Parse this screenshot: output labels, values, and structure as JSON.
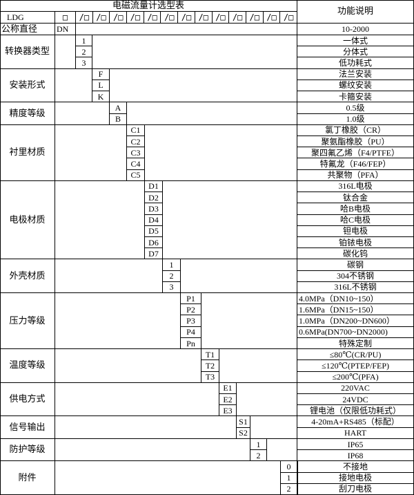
{
  "title": "电磁流量计选型表",
  "function_header": "功能说明",
  "header_row": {
    "model": "LDG",
    "first_box": "□",
    "boxes": [
      "/□",
      "/□",
      "/□",
      "/□",
      "/□",
      "/□",
      "/□",
      "/□",
      "/□",
      "/□",
      "/□",
      "/□",
      "/□"
    ]
  },
  "diameter_row": {
    "label": "公称直径",
    "code": "DN",
    "desc": "10-2000"
  },
  "groups": [
    {
      "label": "转换器类型",
      "options": [
        {
          "code": "1",
          "desc": "一体式"
        },
        {
          "code": "2",
          "desc": "分体式"
        },
        {
          "code": "3",
          "desc": "低功耗式"
        }
      ]
    },
    {
      "label": "安装形式",
      "options": [
        {
          "code": "F",
          "desc": "法兰安装"
        },
        {
          "code": "L",
          "desc": "螺纹安装"
        },
        {
          "code": "K",
          "desc": "卡箍安装"
        }
      ]
    },
    {
      "label": "精度等级",
      "options": [
        {
          "code": "A",
          "desc": "0.5级"
        },
        {
          "code": "B",
          "desc": "1.0级"
        }
      ]
    },
    {
      "label": "衬里材质",
      "options": [
        {
          "code": "C1",
          "desc": "氯丁橡胶（CR）"
        },
        {
          "code": "C2",
          "desc": "聚氨酯橡胶（PU）"
        },
        {
          "code": "C3",
          "desc": "聚四氟乙烯（F4/PTFE）"
        },
        {
          "code": "C4",
          "desc": "特氟龙（F46/FEP）"
        },
        {
          "code": "C5",
          "desc": "共聚物（PFA）"
        }
      ]
    },
    {
      "label": "电极材质",
      "options": [
        {
          "code": "D1",
          "desc": "316L电极"
        },
        {
          "code": "D2",
          "desc": "钛合金"
        },
        {
          "code": "D3",
          "desc": "哈B电极"
        },
        {
          "code": "D4",
          "desc": "哈C电极"
        },
        {
          "code": "D5",
          "desc": "钽电极"
        },
        {
          "code": "D6",
          "desc": "铂铱电极"
        },
        {
          "code": "D7",
          "desc": "碳化钨"
        }
      ]
    },
    {
      "label": "外壳材质",
      "options": [
        {
          "code": "1",
          "desc": "碳钢"
        },
        {
          "code": "2",
          "desc": "304不锈钢"
        },
        {
          "code": "3",
          "desc": "316L不锈钢"
        }
      ]
    },
    {
      "label": "压力等级",
      "options": [
        {
          "code": "P1",
          "desc": "4.0MPa（DN10~150）"
        },
        {
          "code": "P2",
          "desc": "1.6MPa（DN15~150）"
        },
        {
          "code": "P3",
          "desc": "1.0MPa（DN200~DN600）"
        },
        {
          "code": "P4",
          "desc": "0.6MPa(DN700~DN2000)"
        },
        {
          "code": "Pn",
          "desc": "特殊定制"
        }
      ]
    },
    {
      "label": "温度等级",
      "options": [
        {
          "code": "T1",
          "desc": "≤80℃(CR/PU)"
        },
        {
          "code": "T2",
          "desc": "≤120℃(PTEP/FEP)"
        },
        {
          "code": "T3",
          "desc": "≤200℃(PFA)"
        }
      ]
    },
    {
      "label": "供电方式",
      "options": [
        {
          "code": "E1",
          "desc": "220VAC"
        },
        {
          "code": "E2",
          "desc": "24VDC"
        },
        {
          "code": "E3",
          "desc": "锂电池（仅限低功耗式）"
        }
      ]
    },
    {
      "label": "信号输出",
      "options": [
        {
          "code": "S1",
          "desc": "4-20mA+RS485（标配）"
        },
        {
          "code": "S2",
          "desc": "HART"
        }
      ]
    },
    {
      "label": "防护等级",
      "options": [
        {
          "code": "1",
          "desc": "IP65"
        },
        {
          "code": "2",
          "desc": "IP68"
        }
      ]
    },
    {
      "label": "附件",
      "options": [
        {
          "code": "0",
          "desc": "不接地"
        },
        {
          "code": "1",
          "desc": "接地电极"
        },
        {
          "code": "2",
          "desc": "刮刀电极"
        }
      ]
    }
  ]
}
